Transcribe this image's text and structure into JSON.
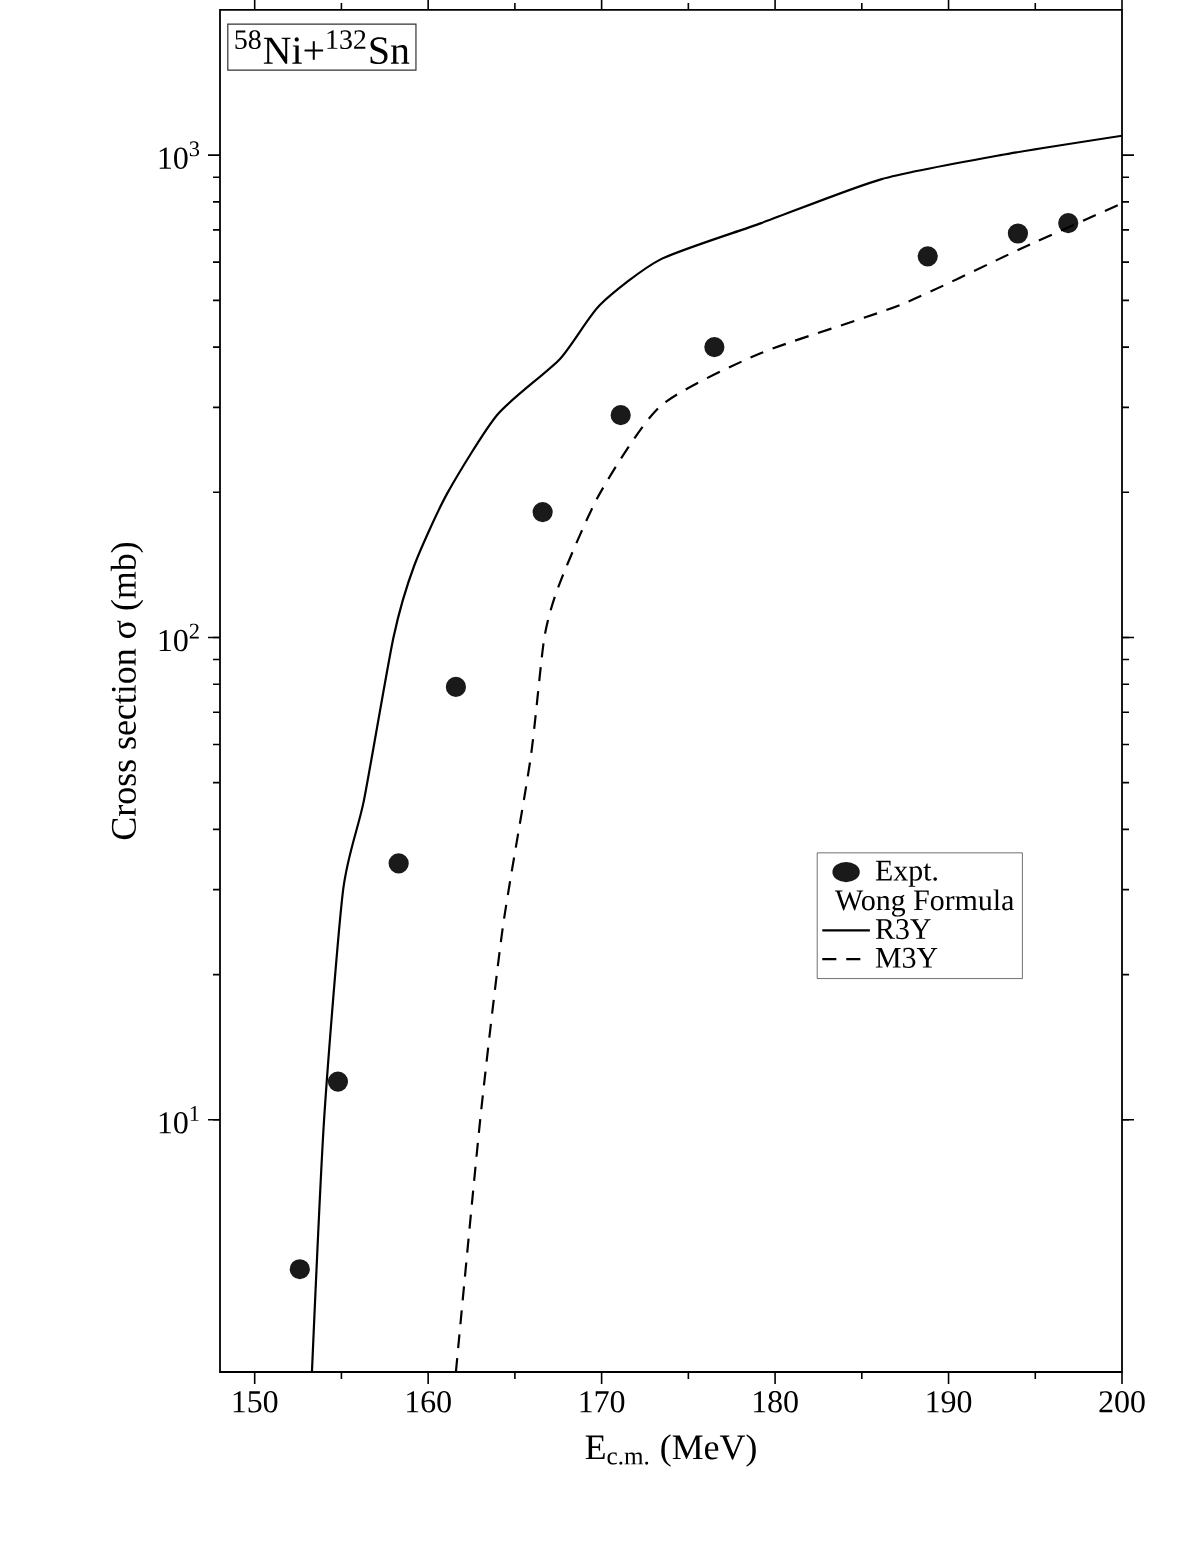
{
  "chart_data": {
    "type": "line",
    "title": "$^{58}$Ni+$^{132}$Sn",
    "xlabel": "E$_{c.m.}$ (MeV)",
    "ylabel": "Cross section σ (mb)",
    "legend_title": "Wong Formula",
    "log": "y",
    "xlim": [
      148,
      200
    ],
    "ylim": [
      3,
      2000
    ],
    "xticks": [
      150,
      160,
      170,
      180,
      190,
      200
    ],
    "yticks": [
      {
        "value": 10,
        "label": "10$^{1}$"
      },
      {
        "value": 100,
        "label": "10$^{2}$"
      },
      {
        "value": 1000,
        "label": "10$^{3}$"
      }
    ],
    "legend": "right",
    "grid": false,
    "series": [
      {
        "name": "Expt.",
        "type": "scatter",
        "marker": "circle",
        "color": "#1a1a1a",
        "x": [
          152.6,
          154.8,
          158.3,
          161.6,
          166.6,
          171.1,
          176.5,
          188.8,
          194.0,
          196.9
        ],
        "values": [
          4.9,
          12,
          34,
          79,
          182,
          289,
          400,
          617,
          688,
          723
        ]
      },
      {
        "name": "R3Y",
        "line_style": "solid",
        "color": "#000000",
        "x": [
          153.3,
          154.0,
          155.1,
          156.3,
          158.0,
          159.2,
          161.1,
          164.0,
          167.6,
          169.9,
          173.4,
          179.2,
          186.1,
          193.0,
          200.0
        ],
        "values": [
          3,
          10,
          30,
          46,
          100,
          141,
          199,
          290,
          378,
          489,
          608,
          723,
          891,
          1000,
          1097
        ]
      },
      {
        "name": "M3Y",
        "line_style": "dashed",
        "color": "#000000",
        "x": [
          161.6,
          163.0,
          164.3,
          165.9,
          166.7,
          167.6,
          169.9,
          173.4,
          179.2,
          187.2,
          194.1,
          200.0
        ],
        "values": [
          3,
          10,
          25,
          56,
          100,
          130,
          199,
          302,
          389,
          489,
          638,
          795
        ]
      }
    ]
  }
}
